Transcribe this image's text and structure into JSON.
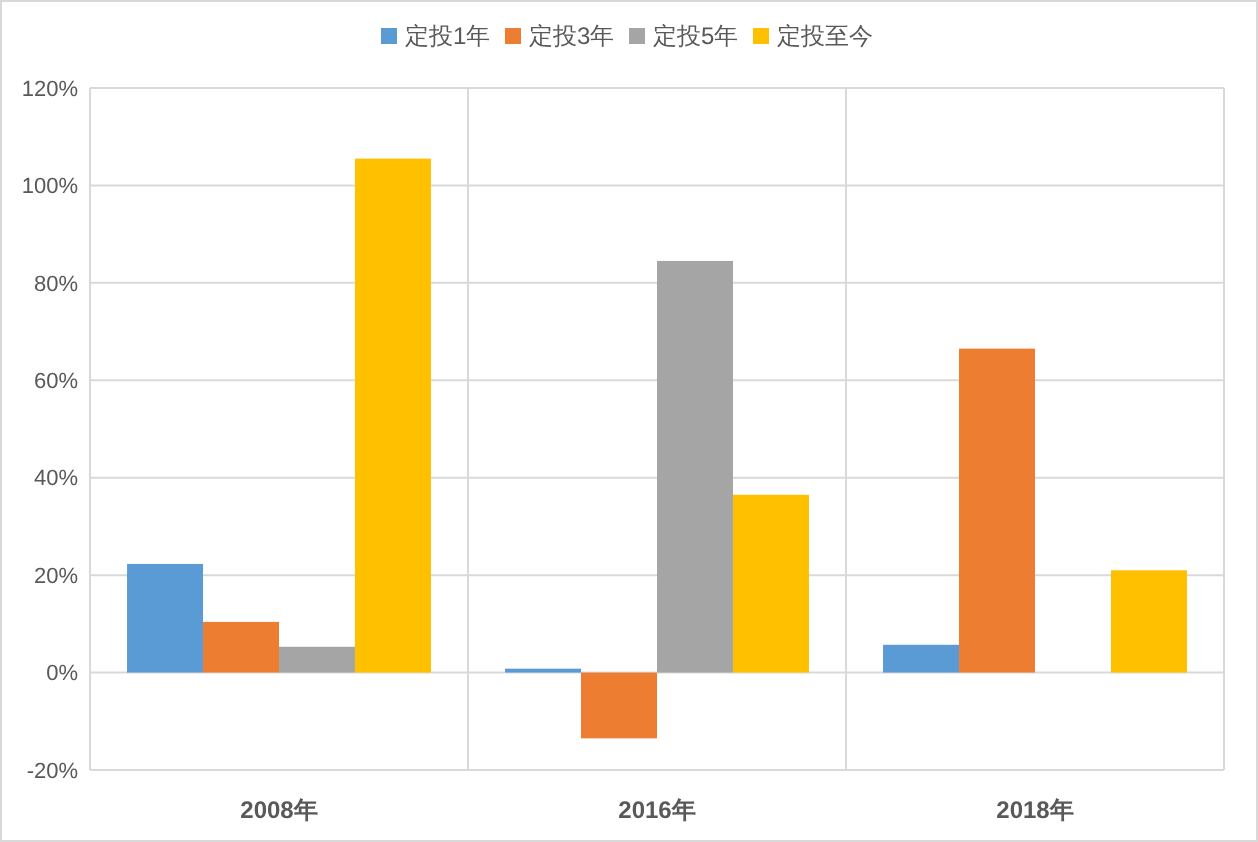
{
  "chart_data": {
    "type": "bar",
    "categories": [
      "2008年",
      "2016年",
      "2018年"
    ],
    "series": [
      {
        "name": "定投1年",
        "color": "#5b9bd5",
        "values": [
          22.3,
          0.8,
          5.7
        ]
      },
      {
        "name": "定投3年",
        "color": "#ed7d31",
        "values": [
          10.4,
          -13.5,
          66.5
        ]
      },
      {
        "name": "定投5年",
        "color": "#a5a5a5",
        "values": [
          5.3,
          84.5,
          null
        ]
      },
      {
        "name": "定投至今",
        "color": "#ffc000",
        "values": [
          105.5,
          36.5,
          21
        ]
      }
    ],
    "ylim": [
      -20,
      120
    ],
    "yticks": [
      {
        "value": -20,
        "label": "-20%"
      },
      {
        "value": 0,
        "label": "0%"
      },
      {
        "value": 20,
        "label": "20%"
      },
      {
        "value": 40,
        "label": "40%"
      },
      {
        "value": 60,
        "label": "60%"
      },
      {
        "value": 80,
        "label": "80%"
      },
      {
        "value": 100,
        "label": "100%"
      },
      {
        "value": 120,
        "label": "120%"
      }
    ],
    "grid": true,
    "legend": "top"
  }
}
